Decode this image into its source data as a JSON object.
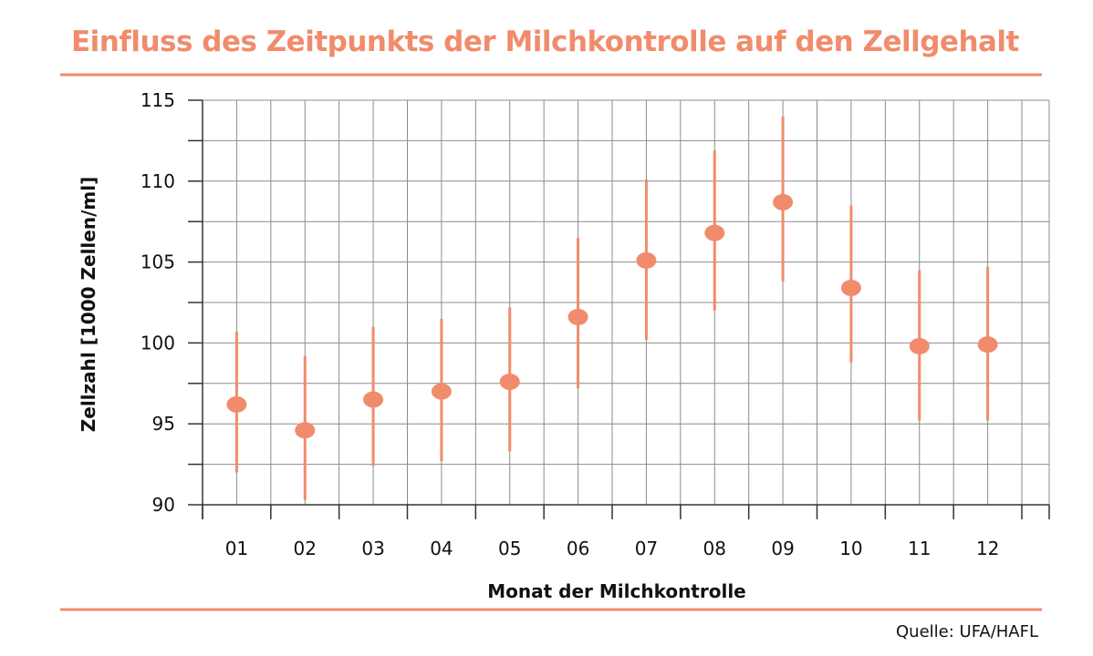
{
  "header": {
    "title": "Einfluss des Zeitpunkts der Milchkontrolle auf den Zellgehalt"
  },
  "footer": {
    "source": "Quelle: UFA/HAFL"
  },
  "colors": {
    "accent": "#f08c6c",
    "grid": "#8c8c8c",
    "axis": "#333333",
    "text": "#111111"
  },
  "chart_data": {
    "type": "scatter",
    "title": "Einfluss des Zeitpunkts der Milchkontrolle auf den Zellgehalt",
    "xlabel": "Monat der Milchkontrolle",
    "ylabel": "Zellzahl [1000 Zellen/ml]",
    "categories": [
      "01",
      "02",
      "03",
      "04",
      "05",
      "06",
      "07",
      "08",
      "09",
      "10",
      "11",
      "12"
    ],
    "ylim": [
      90,
      115
    ],
    "yticks": [
      90,
      95,
      100,
      105,
      110,
      115
    ],
    "grid": true,
    "legend": "none",
    "series": [
      {
        "values": [
          96.2,
          94.6,
          96.5,
          97.0,
          97.6,
          101.6,
          105.1,
          106.8,
          108.7,
          103.4,
          99.8,
          99.9
        ],
        "lower": [
          92.0,
          90.3,
          92.4,
          92.7,
          93.3,
          97.2,
          100.2,
          102.0,
          103.8,
          98.8,
          95.2,
          95.2
        ],
        "upper": [
          100.7,
          99.2,
          101.0,
          101.5,
          102.2,
          106.5,
          110.1,
          111.9,
          114.0,
          108.5,
          104.5,
          104.7
        ]
      }
    ]
  }
}
